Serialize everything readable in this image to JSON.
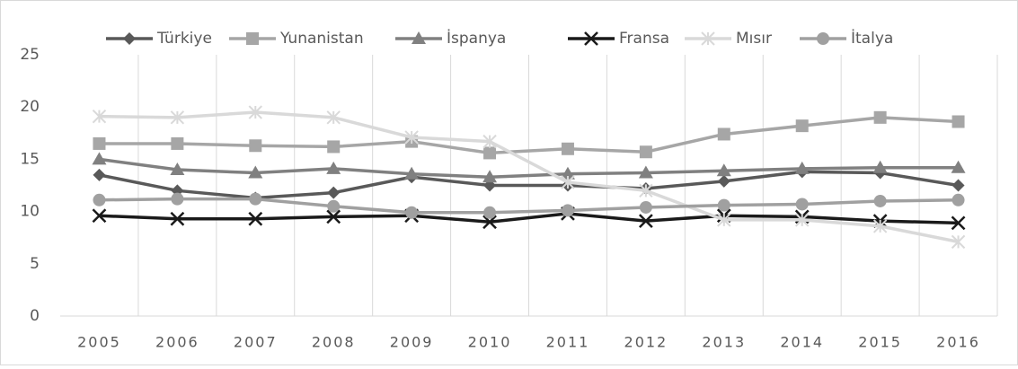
{
  "chart_data": {
    "type": "line",
    "categories": [
      "2005",
      "2006",
      "2007",
      "2008",
      "2009",
      "2010",
      "2011",
      "2012",
      "2013",
      "2014",
      "2015",
      "2016"
    ],
    "series": [
      {
        "name": "Türkiye",
        "color": "#595959",
        "marker": "diamond",
        "values": [
          13.5,
          12.0,
          11.3,
          11.8,
          13.3,
          12.5,
          12.5,
          12.2,
          12.9,
          13.8,
          13.7,
          12.5
        ]
      },
      {
        "name": "Yunanistan",
        "color": "#a6a6a6",
        "marker": "square",
        "values": [
          16.5,
          16.5,
          16.3,
          16.2,
          16.7,
          15.6,
          16.0,
          15.7,
          17.4,
          18.2,
          19.0,
          18.6
        ]
      },
      {
        "name": "İspanya",
        "color": "#808080",
        "marker": "triangle",
        "values": [
          15.0,
          14.0,
          13.7,
          14.1,
          13.6,
          13.3,
          13.6,
          13.7,
          13.9,
          14.1,
          14.2,
          14.2
        ]
      },
      {
        "name": "Fransa",
        "color": "#1a1a1a",
        "marker": "x",
        "values": [
          9.6,
          9.3,
          9.3,
          9.5,
          9.6,
          9.0,
          9.8,
          9.1,
          9.6,
          9.5,
          9.1,
          8.9
        ]
      },
      {
        "name": "Mısır",
        "color": "#d9d9d9",
        "marker": "star",
        "values": [
          19.1,
          19.0,
          19.5,
          19.0,
          17.1,
          16.7,
          12.8,
          12.0,
          9.2,
          9.2,
          8.6,
          7.1
        ]
      },
      {
        "name": "İtalya",
        "color": "#a0a0a0",
        "marker": "circle",
        "values": [
          11.1,
          11.2,
          11.2,
          10.5,
          9.9,
          9.9,
          10.1,
          10.4,
          10.6,
          10.7,
          11.0,
          11.1
        ]
      }
    ],
    "ylim": [
      0,
      25
    ],
    "yticks": [
      0,
      5,
      10,
      15,
      20,
      25
    ],
    "legend": "top"
  }
}
